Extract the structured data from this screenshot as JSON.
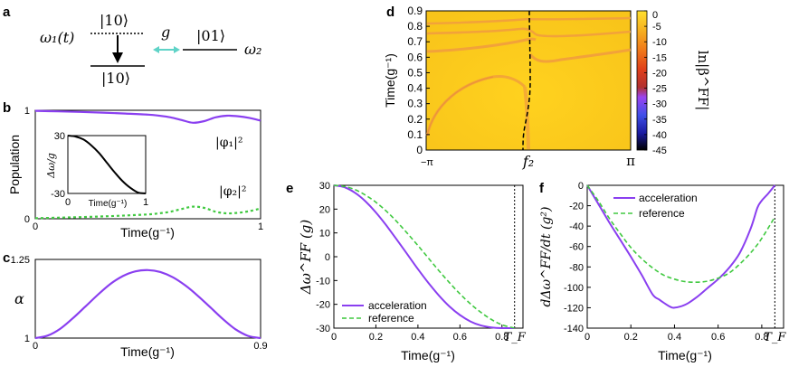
{
  "panel_letters": {
    "a": "a",
    "b": "b",
    "c": "c",
    "d": "d",
    "e": "e",
    "f": "f"
  },
  "colors": {
    "purple": "#8a3ff0",
    "green": "#41c941",
    "cyan": "#5fd3c7",
    "black": "#000000"
  },
  "panel_a": {
    "omega1": "ω₁(t)",
    "ket_top": "|10⟩",
    "ket_bottom": "|10⟩",
    "coupling": "g",
    "ket_right": "|01⟩",
    "omega2": "ω₂"
  },
  "chart_data": [
    {
      "id": "b",
      "type": "line",
      "xlabel": "Time(g⁻¹)",
      "ylabel": "Population",
      "xlim": [
        0,
        1
      ],
      "ylim": [
        0,
        1
      ],
      "xticks": [
        "0",
        "1"
      ],
      "yticks": [
        "0",
        "1"
      ],
      "series": [
        {
          "name": "|φ₁|²",
          "color": "#8a3ff0",
          "x": [
            0,
            0.1,
            0.2,
            0.3,
            0.4,
            0.5,
            0.55,
            0.6,
            0.65,
            0.7,
            0.75,
            0.8,
            0.85,
            0.9,
            0.95,
            1.0
          ],
          "y": [
            0.995,
            0.99,
            0.985,
            0.978,
            0.97,
            0.96,
            0.95,
            0.935,
            0.91,
            0.885,
            0.9,
            0.935,
            0.95,
            0.945,
            0.93,
            0.905
          ]
        },
        {
          "name": "|φ₂|²",
          "color": "#41c941",
          "dashed": true,
          "x": [
            0,
            0.1,
            0.2,
            0.3,
            0.4,
            0.5,
            0.55,
            0.6,
            0.65,
            0.7,
            0.75,
            0.8,
            0.85,
            0.9,
            0.95,
            1.0
          ],
          "y": [
            0.005,
            0.01,
            0.015,
            0.022,
            0.03,
            0.04,
            0.05,
            0.065,
            0.09,
            0.112,
            0.1,
            0.065,
            0.05,
            0.055,
            0.07,
            0.095
          ]
        }
      ],
      "labels": {
        "phi1": "|φ₁|²",
        "phi2": "|φ₂|²"
      },
      "inset": {
        "ylabel": "Δω/g",
        "xlabel": "Time(g⁻¹)",
        "xticks": [
          "0",
          "1"
        ],
        "yticks": [
          "30",
          "-30"
        ],
        "xlim": [
          0,
          1
        ],
        "ylim": [
          -30,
          30
        ],
        "x": [
          0,
          0.1,
          0.2,
          0.3,
          0.4,
          0.5,
          0.6,
          0.7,
          0.8,
          0.9,
          1.0
        ],
        "y": [
          30,
          29,
          26,
          20,
          12,
          2,
          -8,
          -17,
          -24,
          -29,
          -30
        ]
      }
    },
    {
      "id": "c",
      "type": "line",
      "xlabel": "Time(g⁻¹)",
      "ylabel": "α",
      "xlim": [
        0,
        0.9
      ],
      "ylim": [
        1,
        1.25
      ],
      "xticks": [
        "0",
        "0.9"
      ],
      "yticks": [
        "1.25",
        "1"
      ],
      "series": [
        {
          "name": "alpha",
          "color": "#8a3ff0",
          "x": [
            0,
            0.05,
            0.1,
            0.15,
            0.2,
            0.25,
            0.3,
            0.35,
            0.4,
            0.45,
            0.5,
            0.55,
            0.6,
            0.65,
            0.7,
            0.75,
            0.8,
            0.85,
            0.9
          ],
          "y": [
            1.0,
            1.008,
            1.03,
            1.063,
            1.1,
            1.138,
            1.172,
            1.197,
            1.212,
            1.216,
            1.21,
            1.193,
            1.167,
            1.134,
            1.097,
            1.06,
            1.028,
            1.007,
            1.0
          ]
        }
      ]
    },
    {
      "id": "d",
      "type": "heatmap",
      "ylabel": "Time(g⁻¹)",
      "xticks": [
        "−π",
        "f₂",
        "π"
      ],
      "yticks": [
        "0",
        "0.1",
        "0.2",
        "0.3",
        "0.4",
        "0.5",
        "0.6",
        "0.7",
        "0.8",
        "0.9"
      ],
      "ylim": [
        0,
        0.9
      ],
      "colorbar": {
        "label": "ln|β^FF|",
        "ticks": [
          "0",
          "-5",
          "-10",
          "-15",
          "-20",
          "-25",
          "-30",
          "-35",
          "-40",
          "-45"
        ],
        "range": [
          -45,
          0
        ]
      }
    },
    {
      "id": "e",
      "type": "line",
      "xlabel": "Time(g⁻¹)",
      "ylabel": "Δω^FF (g)",
      "xlim": [
        0,
        0.9
      ],
      "ylim": [
        -30,
        30
      ],
      "xticks": [
        "0",
        "0.2",
        "0.4",
        "0.6",
        "0.8"
      ],
      "yticks": [
        "30",
        "20",
        "10",
        "0",
        "-10",
        "-20",
        "-30"
      ],
      "tf_label": "T_F",
      "tf_value": 0.86,
      "series": [
        {
          "name": "acceleration",
          "color": "#8a3ff0",
          "x": [
            0,
            0.05,
            0.1,
            0.15,
            0.2,
            0.25,
            0.3,
            0.35,
            0.4,
            0.45,
            0.5,
            0.55,
            0.6,
            0.65,
            0.7,
            0.75,
            0.8,
            0.84,
            0.86
          ],
          "y": [
            30,
            29.2,
            26.9,
            23.3,
            18.6,
            13.1,
            7.1,
            1.0,
            -5.2,
            -11.0,
            -16.3,
            -20.9,
            -24.5,
            -27.2,
            -28.9,
            -29.7,
            -30,
            -30,
            -30
          ]
        },
        {
          "name": "reference",
          "color": "#41c941",
          "dashed": true,
          "x": [
            0,
            0.05,
            0.1,
            0.15,
            0.2,
            0.25,
            0.3,
            0.35,
            0.4,
            0.45,
            0.5,
            0.55,
            0.6,
            0.65,
            0.7,
            0.75,
            0.8,
            0.86
          ],
          "y": [
            30,
            29.5,
            28.2,
            25.9,
            22.9,
            19.1,
            14.7,
            9.8,
            4.7,
            -0.6,
            -5.9,
            -10.9,
            -15.6,
            -19.8,
            -23.4,
            -26.4,
            -28.6,
            -30
          ]
        }
      ],
      "legend": {
        "acceleration": "acceleration",
        "reference": "reference"
      }
    },
    {
      "id": "f",
      "type": "line",
      "xlabel": "Time(g⁻¹)",
      "ylabel": "dΔω^FF/dt (g²)",
      "xlim": [
        0,
        0.9
      ],
      "ylim": [
        -140,
        0
      ],
      "xticks": [
        "0",
        "0.2",
        "0.4",
        "0.6",
        "0.8"
      ],
      "yticks": [
        "0",
        "-20",
        "-40",
        "-60",
        "-80",
        "-100",
        "-120",
        "-140"
      ],
      "tf_label": "T_F",
      "tf_value": 0.86,
      "series": [
        {
          "name": "acceleration",
          "color": "#8a3ff0",
          "x": [
            0,
            0.05,
            0.1,
            0.15,
            0.2,
            0.25,
            0.3,
            0.33,
            0.35,
            0.38,
            0.4,
            0.45,
            0.5,
            0.55,
            0.6,
            0.65,
            0.7,
            0.75,
            0.78,
            0.8,
            0.83,
            0.86
          ],
          "y": [
            0,
            -18,
            -36,
            -53,
            -70,
            -88,
            -107,
            -112,
            -115,
            -119,
            -120,
            -117,
            -110,
            -101,
            -92,
            -81,
            -66,
            -42,
            -22,
            -15,
            -8,
            0
          ]
        },
        {
          "name": "reference",
          "color": "#41c941",
          "dashed": true,
          "x": [
            0,
            0.05,
            0.1,
            0.15,
            0.2,
            0.25,
            0.3,
            0.35,
            0.4,
            0.45,
            0.5,
            0.55,
            0.6,
            0.65,
            0.7,
            0.75,
            0.8,
            0.86
          ],
          "y": [
            0,
            -15,
            -32,
            -47,
            -61,
            -72,
            -81,
            -88,
            -92,
            -94.5,
            -95,
            -94,
            -91,
            -86,
            -77,
            -66,
            -52,
            -31
          ]
        }
      ],
      "legend": {
        "acceleration": "acceleration",
        "reference": "reference"
      }
    }
  ]
}
